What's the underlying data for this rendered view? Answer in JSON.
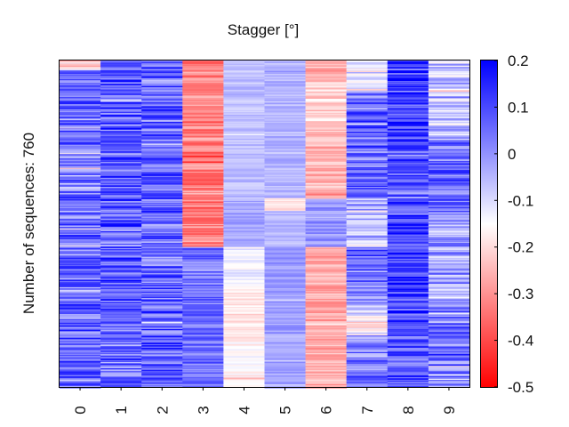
{
  "chart_data": {
    "type": "heatmap",
    "title": "Stagger [°]",
    "ylabel": "Number of sequences: 760",
    "x_categories": [
      "0",
      "1",
      "2",
      "3",
      "4",
      "5",
      "6",
      "7",
      "8",
      "9"
    ],
    "n_rows": 760,
    "colorbar": {
      "range": [
        -0.5,
        0.2
      ],
      "ticks": [
        "0.2",
        "0.1",
        "0",
        "-0.1",
        "-0.2",
        "-0.3",
        "-0.4",
        "-0.5"
      ],
      "colormap": "bwr",
      "colors": {
        "low": "#ff0000",
        "mid": "#ffffff",
        "high": "#0000ff"
      },
      "center": -0.15
    },
    "column_profiles": [
      {
        "column": "0",
        "segments": [
          [
            0,
            0.03,
            -0.22
          ],
          [
            0.03,
            0.25,
            0.05
          ],
          [
            0.25,
            0.5,
            0.04
          ],
          [
            0.5,
            0.75,
            0.04
          ],
          [
            0.75,
            1.0,
            0.05
          ]
        ],
        "noise": 0.13
      },
      {
        "column": "1",
        "segments": [
          [
            0,
            0.25,
            0.08
          ],
          [
            0.25,
            0.5,
            0.07
          ],
          [
            0.5,
            0.75,
            0.08
          ],
          [
            0.75,
            1.0,
            0.06
          ]
        ],
        "noise": 0.12
      },
      {
        "column": "2",
        "segments": [
          [
            0,
            0.25,
            0.05
          ],
          [
            0.25,
            0.5,
            0.06
          ],
          [
            0.5,
            0.75,
            0.05
          ],
          [
            0.75,
            1.0,
            0.07
          ]
        ],
        "noise": 0.12
      },
      {
        "column": "3",
        "segments": [
          [
            0,
            0.57,
            -0.32
          ],
          [
            0.57,
            0.75,
            0.04
          ],
          [
            0.75,
            1.0,
            0.05
          ]
        ],
        "noise": 0.08
      },
      {
        "column": "4",
        "segments": [
          [
            0,
            0.42,
            -0.06
          ],
          [
            0.42,
            0.57,
            -0.03
          ],
          [
            0.57,
            0.7,
            -0.13
          ],
          [
            0.7,
            0.86,
            -0.19
          ],
          [
            0.86,
            1.0,
            -0.16
          ]
        ],
        "noise": 0.04
      },
      {
        "column": "5",
        "segments": [
          [
            0,
            0.42,
            -0.05
          ],
          [
            0.42,
            0.46,
            -0.19
          ],
          [
            0.46,
            0.57,
            -0.06
          ],
          [
            0.57,
            0.7,
            -0.01
          ],
          [
            0.7,
            1.0,
            -0.02
          ]
        ],
        "noise": 0.04
      },
      {
        "column": "6",
        "segments": [
          [
            0,
            0.06,
            -0.26
          ],
          [
            0.06,
            0.21,
            -0.21
          ],
          [
            0.21,
            0.42,
            -0.25
          ],
          [
            0.42,
            0.57,
            -0.01
          ],
          [
            0.57,
            0.75,
            -0.27
          ],
          [
            0.75,
            1.0,
            -0.26
          ]
        ],
        "noise": 0.06
      },
      {
        "column": "7",
        "segments": [
          [
            0,
            0.1,
            -0.11
          ],
          [
            0.1,
            0.42,
            0.06
          ],
          [
            0.42,
            0.57,
            -0.07
          ],
          [
            0.57,
            0.75,
            0.05
          ],
          [
            0.75,
            0.84,
            -0.13
          ],
          [
            0.84,
            1.0,
            0.04
          ]
        ],
        "noise": 0.12
      },
      {
        "column": "8",
        "segments": [
          [
            0,
            0.25,
            0.1
          ],
          [
            0.25,
            0.5,
            0.08
          ],
          [
            0.5,
            0.75,
            0.12
          ],
          [
            0.75,
            1.0,
            0.09
          ]
        ],
        "noise": 0.12
      },
      {
        "column": "9",
        "segments": [
          [
            0,
            0.25,
            -0.05
          ],
          [
            0.25,
            0.5,
            0.06
          ],
          [
            0.5,
            0.75,
            -0.02
          ],
          [
            0.75,
            1.0,
            0.03
          ]
        ],
        "noise": 0.12
      }
    ]
  }
}
